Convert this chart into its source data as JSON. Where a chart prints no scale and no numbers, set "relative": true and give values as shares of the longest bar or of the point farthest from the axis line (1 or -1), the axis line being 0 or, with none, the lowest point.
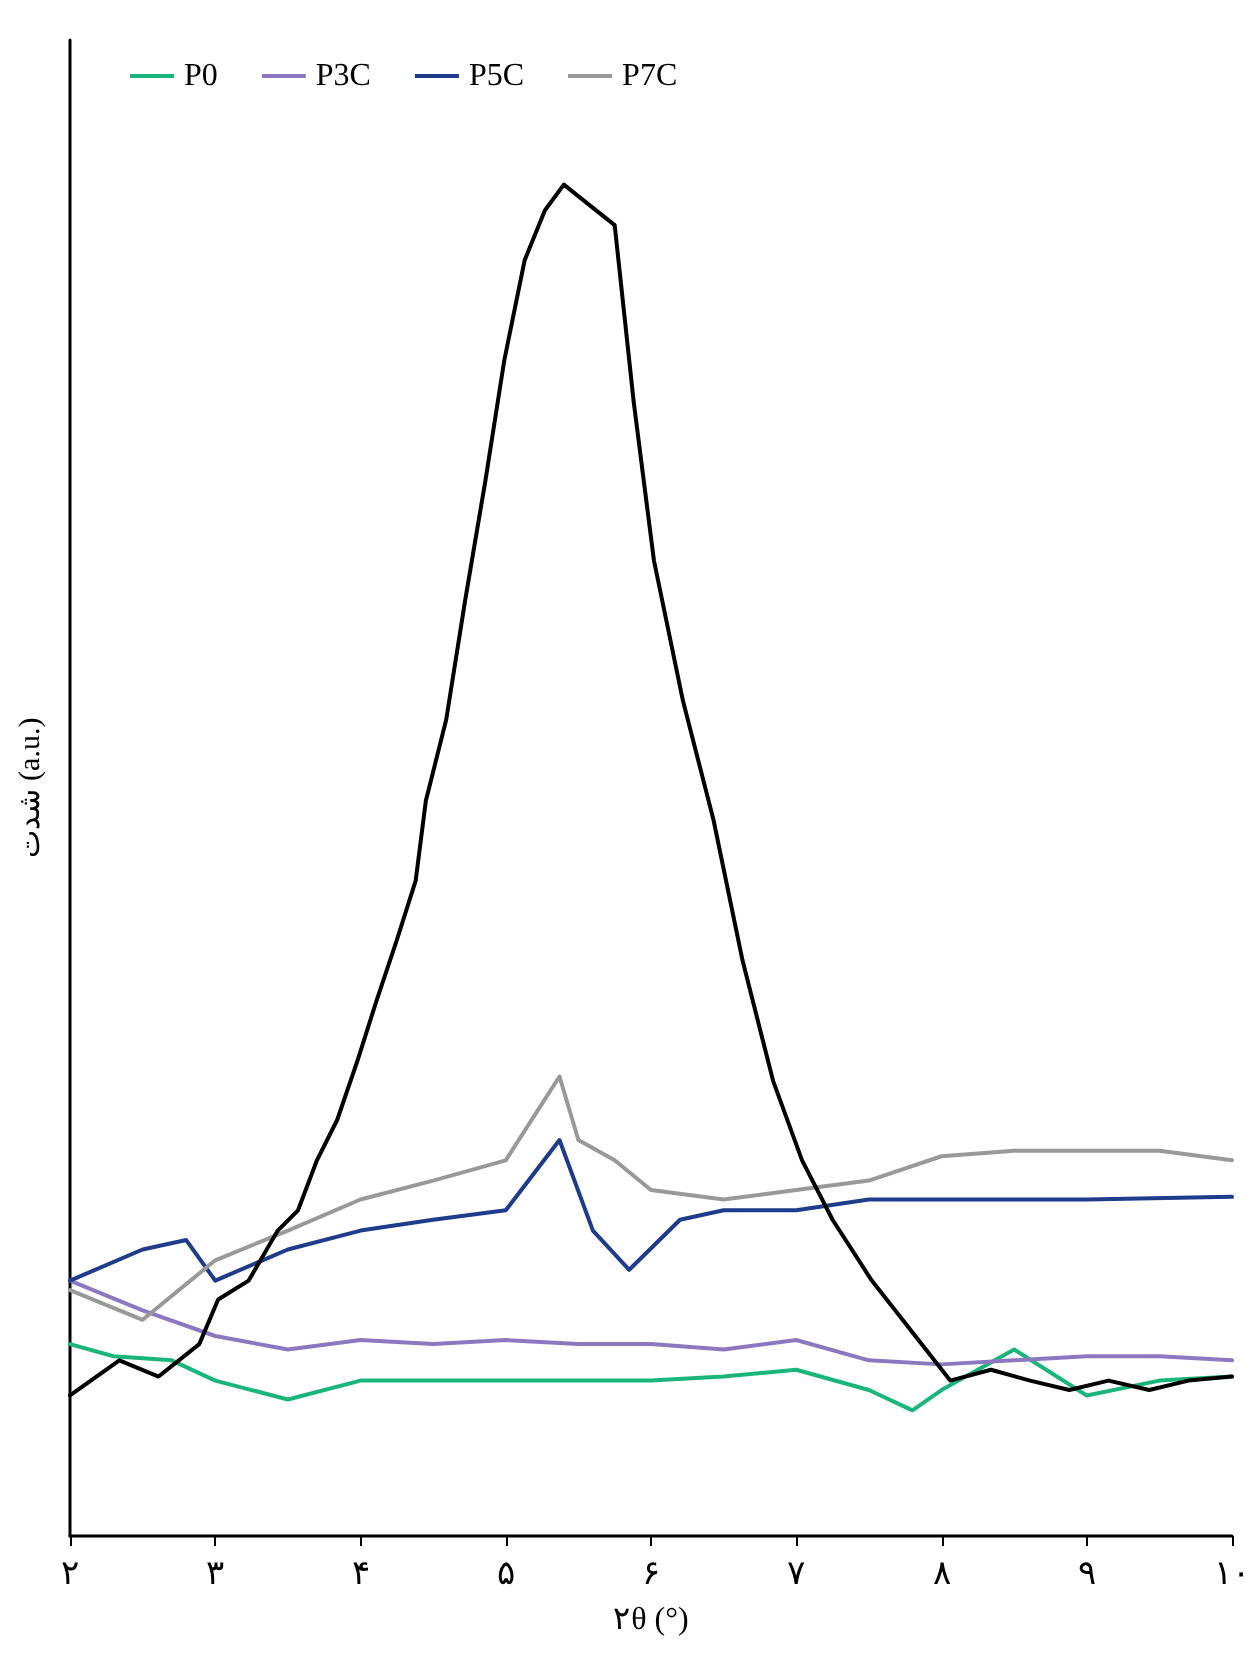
{
  "chart_data": {
    "type": "line",
    "relative": true,
    "xlabel": "۲θ (°)",
    "ylabel": "شدت (a.u.)",
    "xlim": [
      2,
      10
    ],
    "xticks": [
      {
        "value": 2,
        "label": "۲"
      },
      {
        "value": 3,
        "label": "۳"
      },
      {
        "value": 4,
        "label": "۴"
      },
      {
        "value": 5,
        "label": "۵"
      },
      {
        "value": 6,
        "label": "۶"
      },
      {
        "value": 7,
        "label": "۷"
      },
      {
        "value": 8,
        "label": "۸"
      },
      {
        "value": 9,
        "label": "۹"
      },
      {
        "value": 10,
        "label": "۱۰"
      }
    ],
    "legend": "top left",
    "grid": false,
    "marker": "none",
    "line_style": "solid",
    "series": [
      {
        "name": "P0",
        "color": "#1ab57a",
        "x": [
          2,
          2.3,
          2.7,
          3,
          3.5,
          4,
          4.5,
          5,
          5.5,
          6,
          6.5,
          7,
          7.5,
          7.8,
          8,
          8.5,
          9,
          9.5,
          10
        ],
        "values": [
          0.142,
          0.133,
          0.13,
          0.115,
          0.101,
          0.115,
          0.115,
          0.115,
          0.115,
          0.115,
          0.118,
          0.123,
          0.108,
          0.093,
          0.108,
          0.138,
          0.104,
          0.115,
          0.118
        ]
      },
      {
        "name": "P3C",
        "color": "#8b78c0",
        "x": [
          2,
          2.5,
          3,
          3.5,
          4,
          4.5,
          5,
          5.5,
          6,
          6.5,
          7,
          7.5,
          8,
          8.5,
          9,
          9.5,
          10
        ],
        "values": [
          0.189,
          0.167,
          0.148,
          0.138,
          0.145,
          0.142,
          0.145,
          0.142,
          0.142,
          0.138,
          0.145,
          0.13,
          0.127,
          0.13,
          0.133,
          0.133,
          0.13
        ]
      },
      {
        "name": "P5C",
        "color": "#1f3c8c",
        "x": [
          2,
          2.5,
          2.8,
          3,
          3.5,
          4,
          4.5,
          5,
          5.37,
          5.6,
          5.85,
          6.2,
          6.5,
          7,
          7.5,
          8,
          8.5,
          9,
          10
        ],
        "values": [
          0.189,
          0.212,
          0.219,
          0.189,
          0.212,
          0.226,
          0.234,
          0.241,
          0.293,
          0.226,
          0.197,
          0.234,
          0.241,
          0.241,
          0.249,
          0.249,
          0.249,
          0.249,
          0.251
        ]
      },
      {
        "name": "P7C",
        "color": "#999999",
        "x": [
          2,
          2.5,
          3,
          3.5,
          4,
          4.5,
          5,
          5.37,
          5.5,
          5.75,
          6,
          6.5,
          7,
          7.5,
          8,
          8.5,
          9,
          9.5,
          10
        ],
        "values": [
          0.182,
          0.16,
          0.204,
          0.226,
          0.249,
          0.263,
          0.278,
          0.34,
          0.293,
          0.278,
          0.256,
          0.249,
          0.256,
          0.263,
          0.281,
          0.285,
          0.285,
          0.285,
          0.278
        ]
      },
      {
        "color": "#000000",
        "x": [
          2,
          2.34,
          2.61,
          2.89,
          3.02,
          3.23,
          3.43,
          3.57,
          3.7,
          3.84,
          3.98,
          4.11,
          4.25,
          4.38,
          4.45,
          4.59,
          4.72,
          4.86,
          4.99,
          5.13,
          5.27,
          5.4,
          5.54,
          5.75,
          5.88,
          6.02,
          6.22,
          6.43,
          6.63,
          6.84,
          7.04,
          7.25,
          7.52,
          7.79,
          8.06,
          8.34,
          8.61,
          8.88,
          9.15,
          9.43,
          9.7,
          10
        ],
        "values": [
          0.104,
          0.13,
          0.118,
          0.142,
          0.175,
          0.189,
          0.226,
          0.241,
          0.278,
          0.308,
          0.352,
          0.396,
          0.441,
          0.485,
          0.544,
          0.604,
          0.692,
          0.781,
          0.87,
          0.944,
          0.981,
          1,
          0.988,
          0.97,
          0.84,
          0.722,
          0.618,
          0.53,
          0.426,
          0.337,
          0.278,
          0.234,
          0.189,
          0.152,
          0.115,
          0.123,
          0.115,
          0.108,
          0.115,
          0.108,
          0.115,
          0.118
        ]
      }
    ]
  }
}
